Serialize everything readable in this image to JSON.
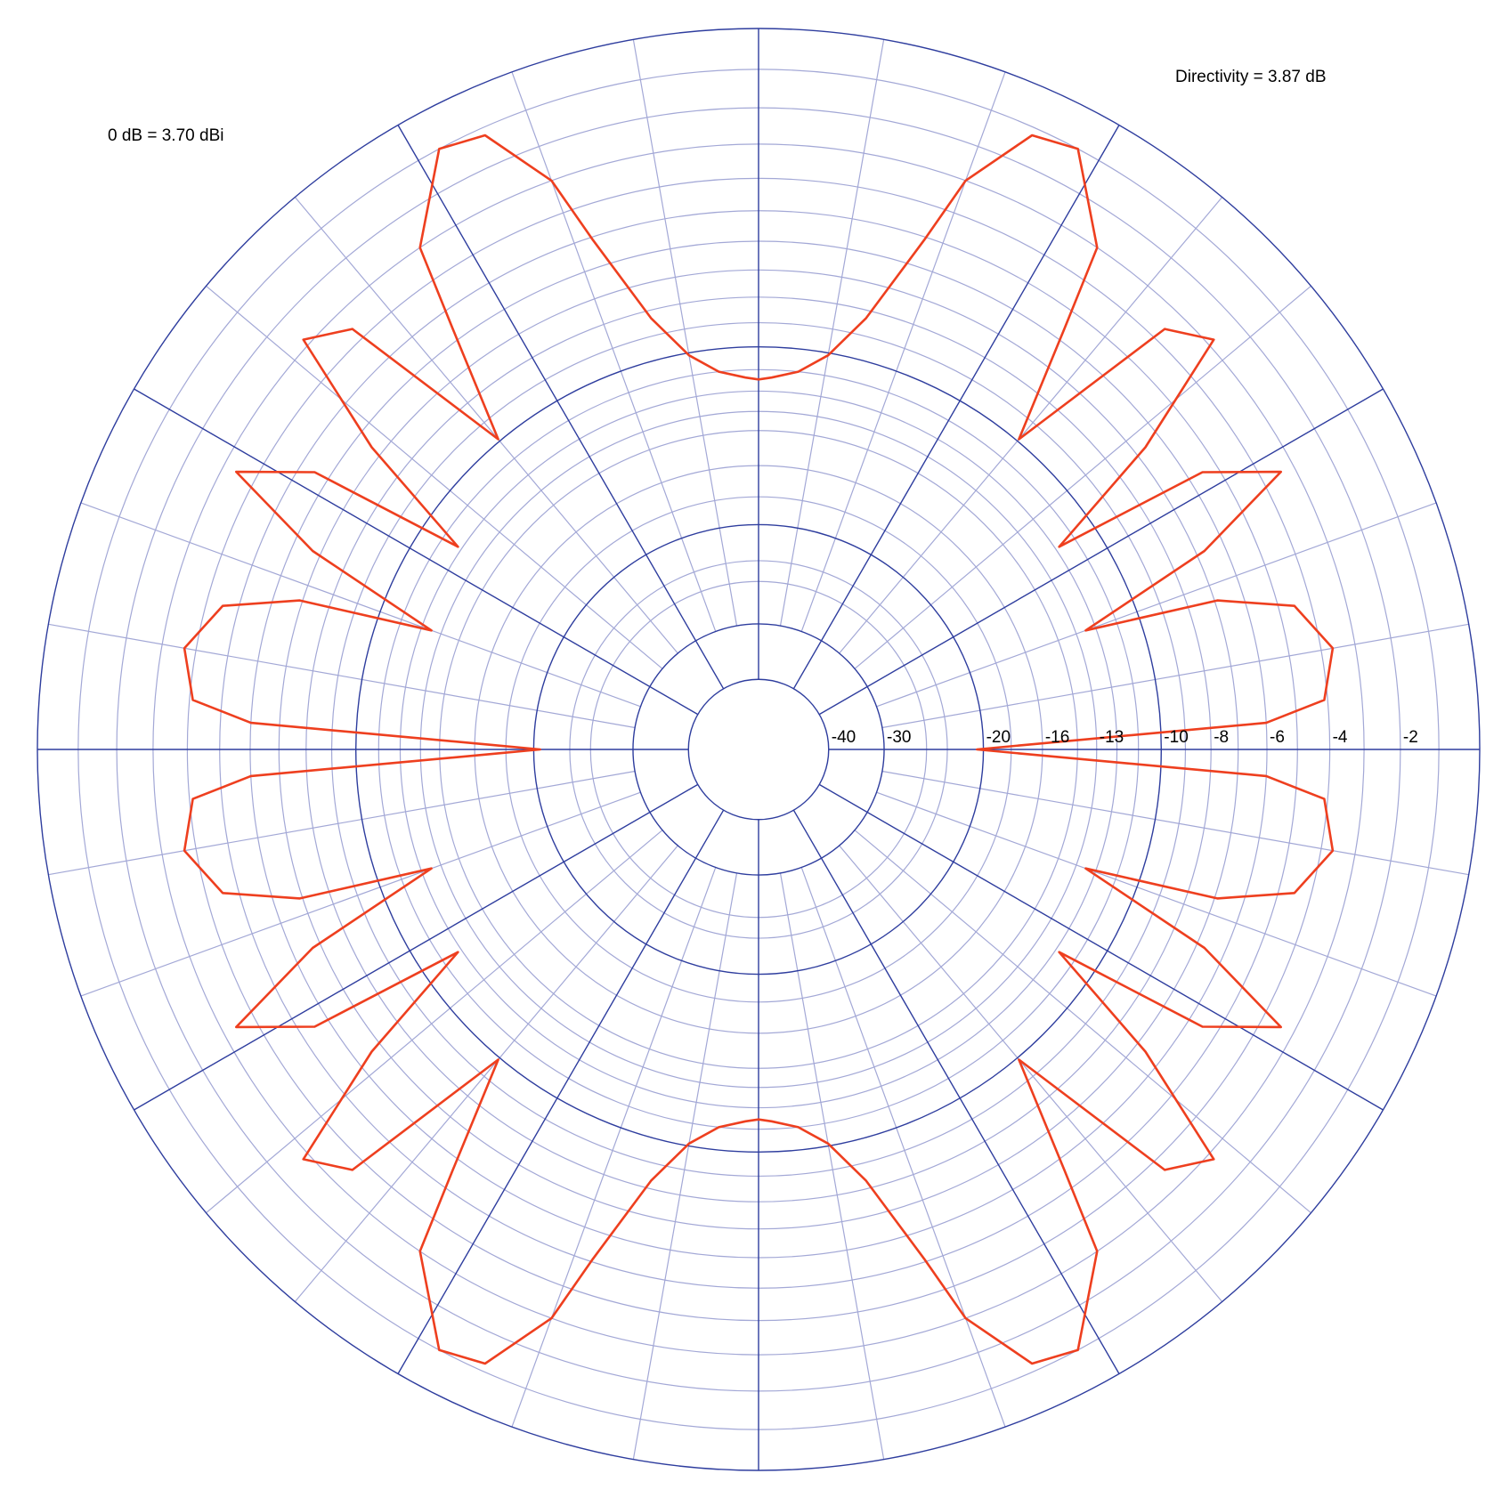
{
  "annotations": {
    "reference": "0 dB = 3.70 dBi",
    "directivity": "Directivity = 3.87 dB"
  },
  "colors": {
    "grid_major": "#2e3d9e",
    "grid_minor": "#a3a8d6",
    "pattern": "#ee3f1f",
    "background": "#ffffff"
  },
  "chart_data": {
    "type": "polar",
    "scale": "ARRL log (dB)",
    "radial_range_db": [
      -40,
      0
    ],
    "ring_labels": [
      "-40",
      "-30",
      "-20",
      "-16",
      "-13",
      "-10",
      "-8",
      "-6",
      "-4",
      "-2"
    ],
    "ring_values_db": [
      -40,
      -30,
      -20,
      -16,
      -13,
      -10,
      -8,
      -6,
      -4,
      -2
    ],
    "minor_ring_values_db": [
      -25,
      -23,
      -18,
      -14,
      -12,
      -11,
      -9,
      -7,
      -5,
      -3,
      -1
    ],
    "major_ring_values_db": [
      -40,
      -30,
      -20,
      -10,
      0
    ],
    "angular_grid": {
      "minor_step_deg": 10,
      "major_step_deg": 30
    },
    "series": [
      {
        "angle_deg": [
          0,
          1,
          3,
          5,
          10,
          15,
          18,
          20,
          24,
          28,
          32,
          34,
          38,
          42,
          46,
          50,
          54,
          56,
          62,
          66,
          70,
          72,
          76,
          80,
          84,
          88,
          90
        ],
        "gain_db": [
          -20.5,
          -17,
          -6,
          -4.1,
          -3.65,
          -4.5,
          -6.9,
          -12.5,
          -6.7,
          -3.4,
          -5.5,
          -11.8,
          -6.6,
          -2.8,
          -3.6,
          -9.9,
          -5.6,
          -3.0,
          -1.0,
          -1.2,
          -3.0,
          -5.1,
          -8.3,
          -10.1,
          -11.0,
          -11.35,
          -11.45
        ],
        "symmetry": "mirrored in all four quadrants"
      }
    ]
  }
}
